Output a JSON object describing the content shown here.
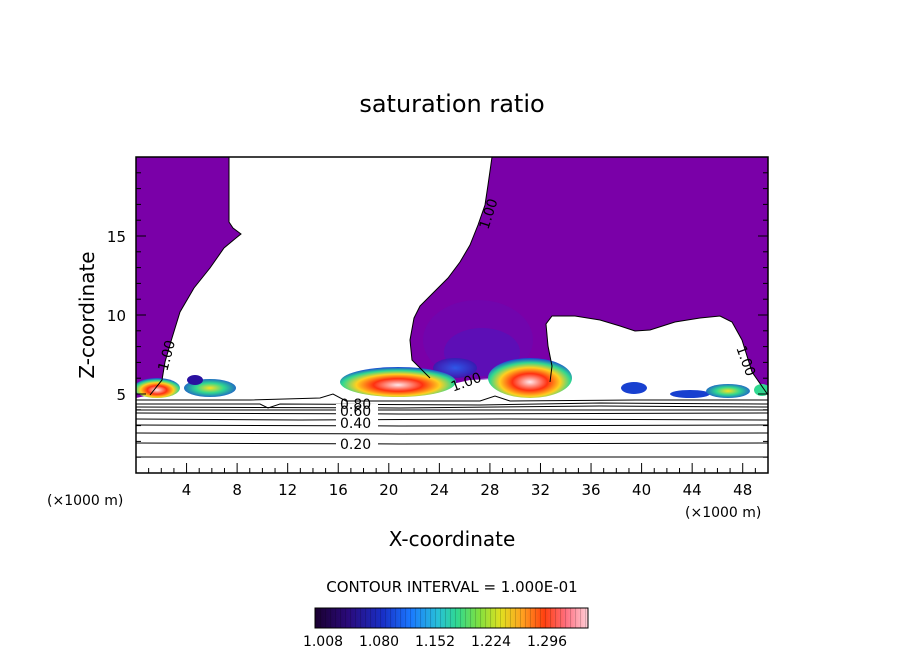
{
  "chart_data": {
    "type": "heatmap",
    "title": "saturation ratio",
    "xlabel": "X-coordinate",
    "ylabel": "Z-coordinate",
    "x_unit": "(×1000 m)",
    "y_unit": "(×1000 m)",
    "xlim": [
      0,
      50
    ],
    "ylim": [
      0,
      20
    ],
    "xticks": [
      4,
      8,
      12,
      16,
      20,
      24,
      28,
      32,
      36,
      40,
      44,
      48
    ],
    "yticks": [
      5,
      10,
      15
    ],
    "contour_interval_label": "CONTOUR INTERVAL = 1.000E-01",
    "colorbar_labels": [
      "1.008",
      "1.080",
      "1.152",
      "1.224",
      "1.296"
    ],
    "colorbar_colors": [
      "#1a0030",
      "#2a0a7a",
      "#1830c8",
      "#1a78ff",
      "#28c0d8",
      "#30d890",
      "#7fe040",
      "#e0e020",
      "#ffa020",
      "#ff4010",
      "#ff7080",
      "#ffd0d8"
    ],
    "contour_labels": [
      "0.20",
      "0.40",
      "0.60",
      "0.80",
      "1.00"
    ],
    "grid": false
  }
}
